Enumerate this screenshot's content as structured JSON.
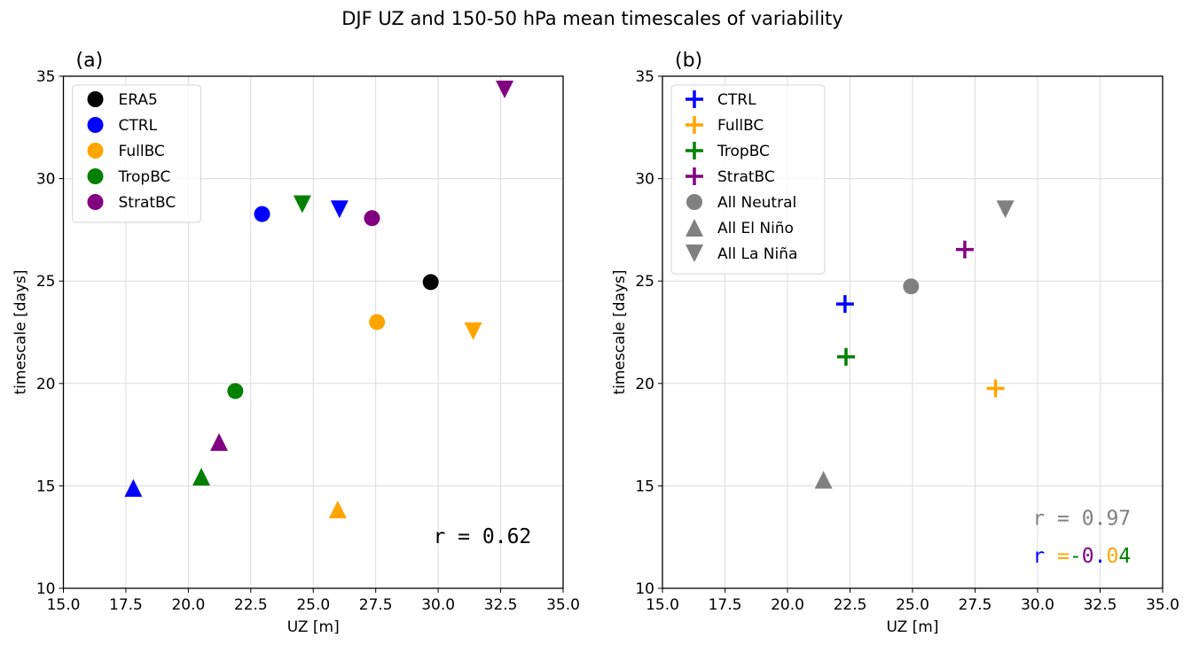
{
  "title": "DJF UZ and 150-50 hPa mean timescales of variability",
  "colors": {
    "ERA5": "#000000",
    "CTRL": "#0000ff",
    "FullBC": "#ffa500",
    "TropBC": "#008000",
    "StratBC": "#800080",
    "All": "#808080"
  },
  "chart_data": [
    {
      "type": "scatter",
      "panel_label": "(a)",
      "title": "",
      "xlabel": "UZ [m]",
      "ylabel": "timescale [days]",
      "xlim": [
        15,
        35
      ],
      "ylim": [
        10,
        35
      ],
      "xticks": [
        "15.0",
        "17.5",
        "20.0",
        "22.5",
        "25.0",
        "27.5",
        "30.0",
        "32.5",
        "35.0"
      ],
      "xtick_values": [
        15,
        17.5,
        20,
        22.5,
        25,
        27.5,
        30,
        32.5,
        35
      ],
      "yticks": [
        "10",
        "15",
        "20",
        "25",
        "30",
        "35"
      ],
      "ytick_values": [
        10,
        15,
        20,
        25,
        30,
        35
      ],
      "grid": true,
      "legend_position": "upper-left",
      "legend": [
        {
          "label": "ERA5",
          "marker": "circle",
          "color": "#000000"
        },
        {
          "label": "CTRL",
          "marker": "circle",
          "color": "#0000ff"
        },
        {
          "label": "FullBC",
          "marker": "circle",
          "color": "#ffa500"
        },
        {
          "label": "TropBC",
          "marker": "circle",
          "color": "#008000"
        },
        {
          "label": "StratBC",
          "marker": "circle",
          "color": "#800080"
        }
      ],
      "points": [
        {
          "series": "ERA5",
          "phase": "Neutral",
          "marker": "circle",
          "color": "#000000",
          "x": 29.7,
          "y": 24.95
        },
        {
          "series": "CTRL",
          "phase": "Neutral",
          "marker": "circle",
          "color": "#0000ff",
          "x": 22.95,
          "y": 28.27
        },
        {
          "series": "CTRL",
          "phase": "El Nino",
          "marker": "triangle-up",
          "color": "#0000ff",
          "x": 17.8,
          "y": 14.9
        },
        {
          "series": "CTRL",
          "phase": "La Nina",
          "marker": "triangle-down",
          "color": "#0000ff",
          "x": 26.05,
          "y": 28.5
        },
        {
          "series": "FullBC",
          "phase": "Neutral",
          "marker": "circle",
          "color": "#ffa500",
          "x": 27.55,
          "y": 23.0
        },
        {
          "series": "FullBC",
          "phase": "El Nino",
          "marker": "triangle-up",
          "color": "#ffa500",
          "x": 25.98,
          "y": 13.85
        },
        {
          "series": "FullBC",
          "phase": "La Nina",
          "marker": "triangle-down",
          "color": "#ffa500",
          "x": 31.4,
          "y": 22.55
        },
        {
          "series": "TropBC",
          "phase": "Neutral",
          "marker": "circle",
          "color": "#008000",
          "x": 21.88,
          "y": 19.63
        },
        {
          "series": "TropBC",
          "phase": "El Nino",
          "marker": "triangle-up",
          "color": "#008000",
          "x": 20.52,
          "y": 15.45
        },
        {
          "series": "TropBC",
          "phase": "La Nina",
          "marker": "triangle-down",
          "color": "#008000",
          "x": 24.56,
          "y": 28.75
        },
        {
          "series": "StratBC",
          "phase": "Neutral",
          "marker": "circle",
          "color": "#800080",
          "x": 27.35,
          "y": 28.07
        },
        {
          "series": "StratBC",
          "phase": "El Nino",
          "marker": "triangle-up",
          "color": "#800080",
          "x": 21.23,
          "y": 17.14
        },
        {
          "series": "StratBC",
          "phase": "La Nina",
          "marker": "triangle-down",
          "color": "#800080",
          "x": 32.66,
          "y": 34.35
        }
      ],
      "annotations": [
        {
          "segments": [
            {
              "text": "r = 0.62",
              "color": "#000000"
            }
          ],
          "x": 29.8,
          "y": 12.2
        }
      ]
    },
    {
      "type": "scatter",
      "panel_label": "(b)",
      "title": "",
      "xlabel": "UZ [m]",
      "ylabel": "timescale [days]",
      "xlim": [
        15,
        35
      ],
      "ylim": [
        10,
        35
      ],
      "xticks": [
        "15.0",
        "17.5",
        "20.0",
        "22.5",
        "25.0",
        "27.5",
        "30.0",
        "32.5",
        "35.0"
      ],
      "xtick_values": [
        15,
        17.5,
        20,
        22.5,
        25,
        27.5,
        30,
        32.5,
        35
      ],
      "yticks": [
        "10",
        "15",
        "20",
        "25",
        "30",
        "35"
      ],
      "ytick_values": [
        10,
        15,
        20,
        25,
        30,
        35
      ],
      "grid": true,
      "legend_position": "upper-left",
      "legend": [
        {
          "label": "CTRL",
          "marker": "plus",
          "color": "#0000ff"
        },
        {
          "label": "FullBC",
          "marker": "plus",
          "color": "#ffa500"
        },
        {
          "label": "TropBC",
          "marker": "plus",
          "color": "#008000"
        },
        {
          "label": "StratBC",
          "marker": "plus",
          "color": "#800080"
        },
        {
          "label": "All Neutral",
          "marker": "circle",
          "color": "#808080"
        },
        {
          "label": "All El Niño",
          "marker": "triangle-up",
          "color": "#808080"
        },
        {
          "label": "All La Niña",
          "marker": "triangle-down",
          "color": "#808080"
        }
      ],
      "points": [
        {
          "series": "CTRL",
          "marker": "plus",
          "color": "#0000ff",
          "x": 22.3,
          "y": 23.88
        },
        {
          "series": "FullBC",
          "marker": "plus",
          "color": "#ffa500",
          "x": 28.32,
          "y": 19.76
        },
        {
          "series": "TropBC",
          "marker": "plus",
          "color": "#008000",
          "x": 22.34,
          "y": 21.3
        },
        {
          "series": "StratBC",
          "marker": "plus",
          "color": "#800080",
          "x": 27.09,
          "y": 26.54
        },
        {
          "series": "All Neutral",
          "marker": "circle",
          "color": "#808080",
          "x": 24.94,
          "y": 24.74
        },
        {
          "series": "All El Niño",
          "marker": "triangle-up",
          "color": "#808080",
          "x": 21.44,
          "y": 15.3
        },
        {
          "series": "All La Niña",
          "marker": "triangle-down",
          "color": "#808080",
          "x": 28.71,
          "y": 28.5
        }
      ],
      "annotations": [
        {
          "segments": [
            {
              "text": "r = 0.97",
              "color": "#808080"
            }
          ],
          "x": 29.8,
          "y": 13.1
        },
        {
          "segments": [
            {
              "text": "r",
              "color": "#0000ff"
            },
            {
              "text": " ",
              "color": "#000000"
            },
            {
              "text": "=",
              "color": "#ffa500"
            },
            {
              "text": "-",
              "color": "#008000"
            },
            {
              "text": "0",
              "color": "#800080"
            },
            {
              "text": ".",
              "color": "#0000ff"
            },
            {
              "text": "0",
              "color": "#ffa500"
            },
            {
              "text": "4",
              "color": "#008000"
            }
          ],
          "x": 29.8,
          "y": 11.25
        }
      ]
    }
  ]
}
